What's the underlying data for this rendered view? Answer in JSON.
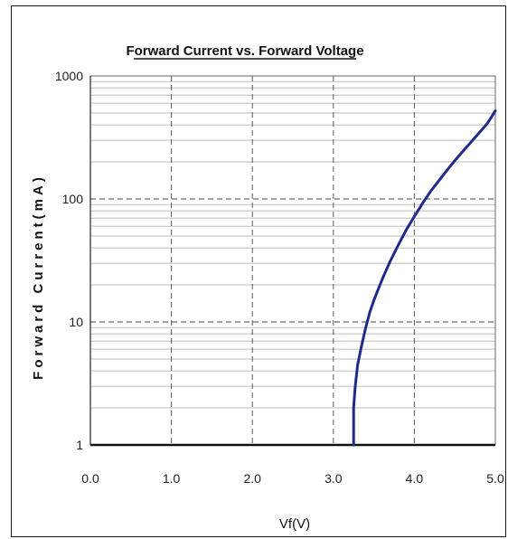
{
  "chart_data": {
    "type": "line",
    "title": "Forward Current vs. Forward Voltage",
    "xlabel": "Vf(V)",
    "ylabel": "Forward Current(mA)",
    "xlim": [
      0.0,
      5.0
    ],
    "ylim": [
      1,
      1000
    ],
    "yscale": "log",
    "x_ticks": [
      "0.0",
      "1.0",
      "2.0",
      "3.0",
      "4.0",
      "5.0"
    ],
    "y_ticks": [
      "1",
      "10",
      "100",
      "1000"
    ],
    "grid": true,
    "series": [
      {
        "color": "#1f2a8c",
        "x": [
          3.25,
          3.25,
          3.27,
          3.3,
          3.35,
          3.4,
          3.45,
          3.5,
          3.6,
          3.7,
          3.8,
          3.9,
          4.0,
          4.1,
          4.2,
          4.3,
          4.4,
          4.5,
          4.6,
          4.7,
          4.8,
          4.9,
          5.0
        ],
        "y": [
          1,
          2,
          3,
          4.5,
          6.5,
          9,
          12,
          15,
          22,
          31,
          42,
          56,
          72,
          92,
          115,
          140,
          170,
          205,
          245,
          290,
          345,
          410,
          520
        ]
      }
    ]
  }
}
